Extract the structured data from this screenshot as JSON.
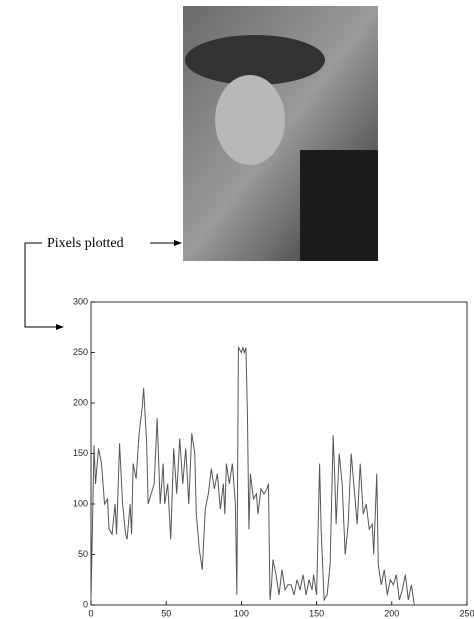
{
  "annotation": "Pixels plotted",
  "chart_data": {
    "type": "line",
    "color": "#555555",
    "x": [
      0,
      2,
      3,
      5,
      7,
      9,
      11,
      12,
      14,
      16,
      17,
      19,
      21,
      23,
      24,
      26,
      27,
      28,
      30,
      32,
      34,
      35,
      37,
      38,
      40,
      42,
      44,
      46,
      48,
      49,
      51,
      53,
      55,
      57,
      59,
      61,
      63,
      65,
      67,
      69,
      70,
      72,
      74,
      76,
      78,
      80,
      82,
      84,
      86,
      88,
      89,
      90,
      92,
      94,
      96,
      97,
      98,
      100,
      101,
      102,
      103,
      104,
      105,
      106,
      108,
      110,
      111,
      113,
      115,
      117,
      118,
      119,
      120,
      121,
      123,
      125,
      127,
      129,
      131,
      133,
      135,
      137,
      139,
      141,
      143,
      145,
      147,
      148,
      150,
      152,
      153,
      155,
      157,
      159,
      161,
      162,
      163,
      165,
      167,
      169,
      171,
      173,
      175,
      177,
      179,
      181,
      183,
      185,
      187,
      188,
      190,
      191,
      193,
      195,
      197,
      199,
      201,
      203,
      205,
      207,
      209,
      211,
      213,
      215
    ],
    "values": [
      5,
      158,
      120,
      155,
      140,
      100,
      105,
      75,
      70,
      100,
      70,
      160,
      100,
      70,
      65,
      100,
      70,
      140,
      125,
      170,
      195,
      215,
      160,
      100,
      110,
      120,
      185,
      100,
      140,
      100,
      120,
      65,
      155,
      110,
      165,
      120,
      155,
      100,
      170,
      150,
      90,
      55,
      35,
      95,
      110,
      135,
      115,
      130,
      95,
      120,
      90,
      140,
      120,
      140,
      100,
      10,
      255,
      250,
      255,
      250,
      255,
      190,
      75,
      130,
      105,
      110,
      90,
      115,
      110,
      115,
      120,
      5,
      20,
      45,
      30,
      10,
      35,
      15,
      20,
      20,
      10,
      25,
      15,
      30,
      10,
      25,
      15,
      30,
      10,
      140,
      75,
      5,
      10,
      40,
      168,
      130,
      80,
      150,
      120,
      50,
      80,
      150,
      115,
      80,
      140,
      90,
      100,
      75,
      80,
      50,
      130,
      40,
      20,
      35,
      10,
      25,
      20,
      30,
      5,
      15,
      30,
      5,
      20,
      0
    ],
    "xlim": [
      0,
      250
    ],
    "xticks": [
      0,
      50,
      100,
      150,
      200,
      250
    ],
    "ylim": [
      0,
      300
    ],
    "yticks": [
      0,
      50,
      100,
      150,
      200,
      250,
      300
    ]
  }
}
